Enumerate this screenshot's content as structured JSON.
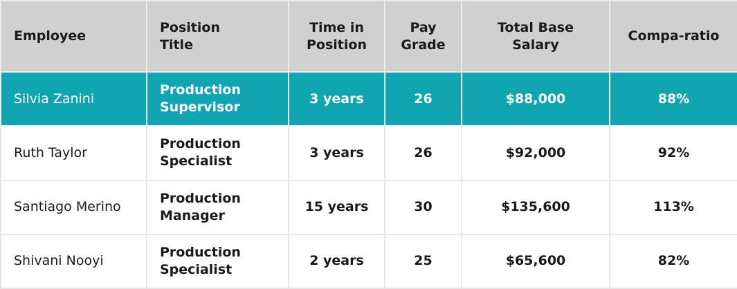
{
  "colors": {
    "header_bg": "#d0d0d0",
    "highlight_bg": "#10a5b0",
    "highlight_text": "#ffffff",
    "text": "#1a1a1a",
    "grid": "#e6e6e6"
  },
  "table": {
    "headers": {
      "employee": "Employee",
      "position_title_1": "Position",
      "position_title_2": "Title",
      "time_in_position_1": "Time in",
      "time_in_position_2": "Position",
      "pay_grade_1": "Pay",
      "pay_grade_2": "Grade",
      "total_base_salary_1": "Total Base",
      "total_base_salary_2": "Salary",
      "compa_ratio": "Compa-ratio"
    },
    "rows": [
      {
        "employee": "Silvia Zanini",
        "title_line1": "Production",
        "title_line2": "Supervisor",
        "time_in_position": "3 years",
        "pay_grade": "26",
        "total_base_salary": "$88,000",
        "compa_ratio": "88%",
        "highlighted": true
      },
      {
        "employee": "Ruth Taylor",
        "title_line1": "Production",
        "title_line2": "Specialist",
        "time_in_position": "3 years",
        "pay_grade": "26",
        "total_base_salary": "$92,000",
        "compa_ratio": "92%",
        "highlighted": false
      },
      {
        "employee": "Santiago Merino",
        "title_line1": "Production",
        "title_line2": "Manager",
        "time_in_position": "15 years",
        "pay_grade": "30",
        "total_base_salary": "$135,600",
        "compa_ratio": "113%",
        "highlighted": false
      },
      {
        "employee": "Shivani Nooyi",
        "title_line1": "Production",
        "title_line2": "Specialist",
        "time_in_position": "2 years",
        "pay_grade": "25",
        "total_base_salary": "$65,600",
        "compa_ratio": "82%",
        "highlighted": false
      }
    ]
  }
}
